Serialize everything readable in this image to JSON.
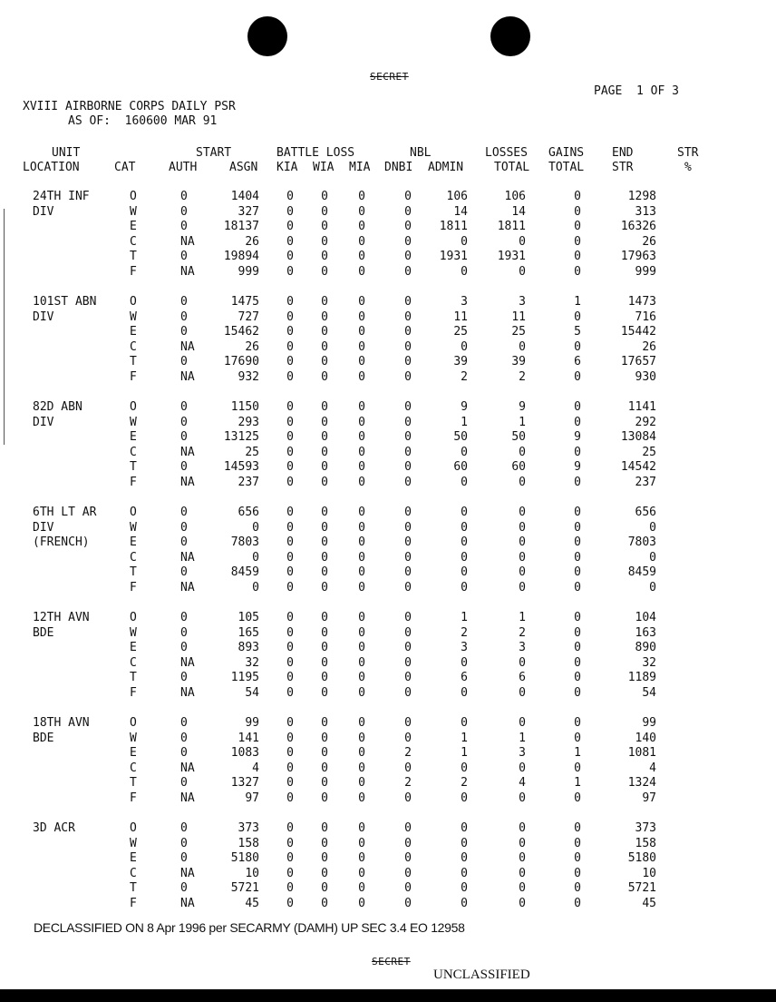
{
  "classification_top": "SECRET",
  "page_label": "PAGE  1 OF 3",
  "title": "XVIII AIRBORNE CORPS DAILY PSR",
  "as_of": "AS OF:  160600 MAR 91",
  "headers": {
    "unit": "UNIT",
    "location": "LOCATION",
    "cat": "CAT",
    "start": "START",
    "auth": "AUTH",
    "asgn": "ASGN",
    "battle_loss": "BATTLE LOSS",
    "kia": "KIA",
    "wia": "WIA",
    "mia": "MIA",
    "nbl": "NBL",
    "dnbi": "DNBI",
    "admin": "ADMIN",
    "losses": "LOSSES",
    "losses_total": "TOTAL",
    "gains": "GAINS",
    "gains_total": "TOTAL",
    "end": "END",
    "end_str": "STR",
    "str": "STR",
    "pct": "%"
  },
  "units": [
    {
      "name": [
        "24TH INF",
        "DIV"
      ],
      "rows": [
        [
          "O",
          "0",
          "1404",
          "0",
          "0",
          "0",
          "0",
          "106",
          "106",
          "0",
          "1298"
        ],
        [
          "W",
          "0",
          "327",
          "0",
          "0",
          "0",
          "0",
          "14",
          "14",
          "0",
          "313"
        ],
        [
          "E",
          "0",
          "18137",
          "0",
          "0",
          "0",
          "0",
          "1811",
          "1811",
          "0",
          "16326"
        ],
        [
          "C",
          "NA",
          "26",
          "0",
          "0",
          "0",
          "0",
          "0",
          "0",
          "0",
          "26"
        ],
        [
          "T",
          "0",
          "19894",
          "0",
          "0",
          "0",
          "0",
          "1931",
          "1931",
          "0",
          "17963"
        ],
        [
          "F",
          "NA",
          "999",
          "0",
          "0",
          "0",
          "0",
          "0",
          "0",
          "0",
          "999"
        ]
      ]
    },
    {
      "name": [
        "101ST ABN",
        "DIV"
      ],
      "rows": [
        [
          "O",
          "0",
          "1475",
          "0",
          "0",
          "0",
          "0",
          "3",
          "3",
          "1",
          "1473"
        ],
        [
          "W",
          "0",
          "727",
          "0",
          "0",
          "0",
          "0",
          "11",
          "11",
          "0",
          "716"
        ],
        [
          "E",
          "0",
          "15462",
          "0",
          "0",
          "0",
          "0",
          "25",
          "25",
          "5",
          "15442"
        ],
        [
          "C",
          "NA",
          "26",
          "0",
          "0",
          "0",
          "0",
          "0",
          "0",
          "0",
          "26"
        ],
        [
          "T",
          "0",
          "17690",
          "0",
          "0",
          "0",
          "0",
          "39",
          "39",
          "6",
          "17657"
        ],
        [
          "F",
          "NA",
          "932",
          "0",
          "0",
          "0",
          "0",
          "2",
          "2",
          "0",
          "930"
        ]
      ]
    },
    {
      "name": [
        "82D ABN",
        "DIV"
      ],
      "rows": [
        [
          "O",
          "0",
          "1150",
          "0",
          "0",
          "0",
          "0",
          "9",
          "9",
          "0",
          "1141"
        ],
        [
          "W",
          "0",
          "293",
          "0",
          "0",
          "0",
          "0",
          "1",
          "1",
          "0",
          "292"
        ],
        [
          "E",
          "0",
          "13125",
          "0",
          "0",
          "0",
          "0",
          "50",
          "50",
          "9",
          "13084"
        ],
        [
          "C",
          "NA",
          "25",
          "0",
          "0",
          "0",
          "0",
          "0",
          "0",
          "0",
          "25"
        ],
        [
          "T",
          "0",
          "14593",
          "0",
          "0",
          "0",
          "0",
          "60",
          "60",
          "9",
          "14542"
        ],
        [
          "F",
          "NA",
          "237",
          "0",
          "0",
          "0",
          "0",
          "0",
          "0",
          "0",
          "237"
        ]
      ]
    },
    {
      "name": [
        "6TH LT AR",
        "DIV",
        "(FRENCH)"
      ],
      "rows": [
        [
          "O",
          "0",
          "656",
          "0",
          "0",
          "0",
          "0",
          "0",
          "0",
          "0",
          "656"
        ],
        [
          "W",
          "0",
          "0",
          "0",
          "0",
          "0",
          "0",
          "0",
          "0",
          "0",
          "0"
        ],
        [
          "E",
          "0",
          "7803",
          "0",
          "0",
          "0",
          "0",
          "0",
          "0",
          "0",
          "7803"
        ],
        [
          "C",
          "NA",
          "0",
          "0",
          "0",
          "0",
          "0",
          "0",
          "0",
          "0",
          "0"
        ],
        [
          "T",
          "0",
          "8459",
          "0",
          "0",
          "0",
          "0",
          "0",
          "0",
          "0",
          "8459"
        ],
        [
          "F",
          "NA",
          "0",
          "0",
          "0",
          "0",
          "0",
          "0",
          "0",
          "0",
          "0"
        ]
      ]
    },
    {
      "name": [
        "12TH AVN",
        "BDE"
      ],
      "rows": [
        [
          "O",
          "0",
          "105",
          "0",
          "0",
          "0",
          "0",
          "1",
          "1",
          "0",
          "104"
        ],
        [
          "W",
          "0",
          "165",
          "0",
          "0",
          "0",
          "0",
          "2",
          "2",
          "0",
          "163"
        ],
        [
          "E",
          "0",
          "893",
          "0",
          "0",
          "0",
          "0",
          "3",
          "3",
          "0",
          "890"
        ],
        [
          "C",
          "NA",
          "32",
          "0",
          "0",
          "0",
          "0",
          "0",
          "0",
          "0",
          "32"
        ],
        [
          "T",
          "0",
          "1195",
          "0",
          "0",
          "0",
          "0",
          "6",
          "6",
          "0",
          "1189"
        ],
        [
          "F",
          "NA",
          "54",
          "0",
          "0",
          "0",
          "0",
          "0",
          "0",
          "0",
          "54"
        ]
      ]
    },
    {
      "name": [
        "18TH AVN",
        "BDE"
      ],
      "rows": [
        [
          "O",
          "0",
          "99",
          "0",
          "0",
          "0",
          "0",
          "0",
          "0",
          "0",
          "99"
        ],
        [
          "W",
          "0",
          "141",
          "0",
          "0",
          "0",
          "0",
          "1",
          "1",
          "0",
          "140"
        ],
        [
          "E",
          "0",
          "1083",
          "0",
          "0",
          "0",
          "2",
          "1",
          "3",
          "1",
          "1081"
        ],
        [
          "C",
          "NA",
          "4",
          "0",
          "0",
          "0",
          "0",
          "0",
          "0",
          "0",
          "4"
        ],
        [
          "T",
          "0",
          "1327",
          "0",
          "0",
          "0",
          "2",
          "2",
          "4",
          "1",
          "1324"
        ],
        [
          "F",
          "NA",
          "97",
          "0",
          "0",
          "0",
          "0",
          "0",
          "0",
          "0",
          "97"
        ]
      ]
    },
    {
      "name": [
        "3D ACR"
      ],
      "rows": [
        [
          "O",
          "0",
          "373",
          "0",
          "0",
          "0",
          "0",
          "0",
          "0",
          "0",
          "373"
        ],
        [
          "W",
          "0",
          "158",
          "0",
          "0",
          "0",
          "0",
          "0",
          "0",
          "0",
          "158"
        ],
        [
          "E",
          "0",
          "5180",
          "0",
          "0",
          "0",
          "0",
          "0",
          "0",
          "0",
          "5180"
        ],
        [
          "C",
          "NA",
          "10",
          "0",
          "0",
          "0",
          "0",
          "0",
          "0",
          "0",
          "10"
        ],
        [
          "T",
          "0",
          "5721",
          "0",
          "0",
          "0",
          "0",
          "0",
          "0",
          "0",
          "5721"
        ],
        [
          "F",
          "NA",
          "45",
          "0",
          "0",
          "0",
          "0",
          "0",
          "0",
          "0",
          "45"
        ]
      ]
    }
  ],
  "declassified_note": "DECLASSIFIED ON 8 Apr 1996 per SECARMY (DAMH) UP SEC 3.4 EO 12958",
  "classification_bottom": "SECRET",
  "unclassified_stamp": "UNCLASSIFIED"
}
